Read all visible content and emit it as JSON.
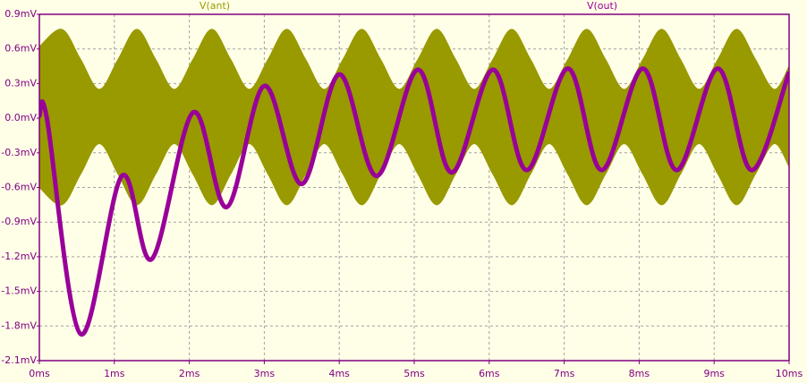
{
  "chart_data": {
    "type": "line",
    "series": [
      {
        "name": "V(ant)",
        "color": "#999900",
        "x": [
          0,
          0.3,
          0.55,
          0.8,
          1.05,
          1.3,
          1.55,
          1.8,
          2.05,
          2.3,
          2.55,
          2.8,
          3.05,
          3.3,
          3.55,
          3.8,
          4.05,
          4.3,
          4.55,
          4.8,
          5.05,
          5.3,
          5.55,
          5.8,
          6.05,
          6.3,
          6.55,
          6.8,
          7.05,
          7.3,
          7.55,
          7.8,
          8.05,
          8.3,
          8.55,
          8.8,
          9.05,
          9.3,
          9.55,
          9.8,
          10
        ],
        "values": [
          0.62,
          0.77,
          0.51,
          0.25,
          0.51,
          0.77,
          0.51,
          0.25,
          0.51,
          0.77,
          0.51,
          0.25,
          0.51,
          0.77,
          0.51,
          0.25,
          0.51,
          0.77,
          0.51,
          0.25,
          0.51,
          0.77,
          0.51,
          0.25,
          0.51,
          0.77,
          0.51,
          0.25,
          0.51,
          0.77,
          0.51,
          0.25,
          0.51,
          0.77,
          0.51,
          0.25,
          0.51,
          0.77,
          0.51,
          0.25,
          0.45
        ],
        "lower": [
          -0.6,
          -0.75,
          -0.485,
          -0.22,
          -0.485,
          -0.75,
          -0.485,
          -0.22,
          -0.485,
          -0.75,
          -0.485,
          -0.22,
          -0.485,
          -0.75,
          -0.485,
          -0.22,
          -0.485,
          -0.75,
          -0.485,
          -0.22,
          -0.485,
          -0.75,
          -0.485,
          -0.22,
          -0.485,
          -0.75,
          -0.485,
          -0.22,
          -0.485,
          -0.75,
          -0.485,
          -0.22,
          -0.485,
          -0.75,
          -0.485,
          -0.22,
          -0.485,
          -0.75,
          -0.485,
          -0.22,
          -0.42
        ]
      },
      {
        "name": "V(out)",
        "color": "#990099",
        "x": [
          0,
          0.1,
          0.55,
          1.1,
          1.5,
          2.05,
          2.5,
          3.0,
          3.5,
          4.0,
          4.5,
          5.05,
          5.5,
          6.05,
          6.5,
          7.05,
          7.5,
          8.05,
          8.5,
          9.05,
          9.5,
          10
        ],
        "values": [
          0.02,
          0.0,
          -1.87,
          -0.5,
          -1.22,
          0.05,
          -0.77,
          0.28,
          -0.57,
          0.38,
          -0.5,
          0.42,
          -0.47,
          0.42,
          -0.45,
          0.43,
          -0.45,
          0.43,
          -0.45,
          0.43,
          -0.45,
          0.4
        ]
      }
    ],
    "xlim": [
      0,
      10
    ],
    "xticks": [
      {
        "value": 0,
        "label": "0ms"
      },
      {
        "value": 1,
        "label": "1ms"
      },
      {
        "value": 2,
        "label": "2ms"
      },
      {
        "value": 3,
        "label": "3ms"
      },
      {
        "value": 4,
        "label": "4ms"
      },
      {
        "value": 5,
        "label": "5ms"
      },
      {
        "value": 6,
        "label": "6ms"
      },
      {
        "value": 7,
        "label": "7ms"
      },
      {
        "value": 8,
        "label": "8ms"
      },
      {
        "value": 9,
        "label": "9ms"
      },
      {
        "value": 10,
        "label": "10ms"
      }
    ],
    "ylim": [
      -2.1,
      0.9
    ],
    "yticks": [
      {
        "value": 0.9,
        "label": "0.9mV"
      },
      {
        "value": 0.6,
        "label": "0.6mV"
      },
      {
        "value": 0.3,
        "label": "0.3mV"
      },
      {
        "value": 0,
        "label": "0.0mV"
      },
      {
        "value": -0.3,
        "label": "-0.3mV"
      },
      {
        "value": -0.6,
        "label": "-0.6mV"
      },
      {
        "value": -0.9,
        "label": "-0.9mV"
      },
      {
        "value": -1.2,
        "label": "-1.2mV"
      },
      {
        "value": -1.5,
        "label": "-1.5mV"
      },
      {
        "value": -1.8,
        "label": "-1.8mV"
      },
      {
        "value": -2.1,
        "label": "-2.1mV"
      }
    ],
    "grid": true
  }
}
